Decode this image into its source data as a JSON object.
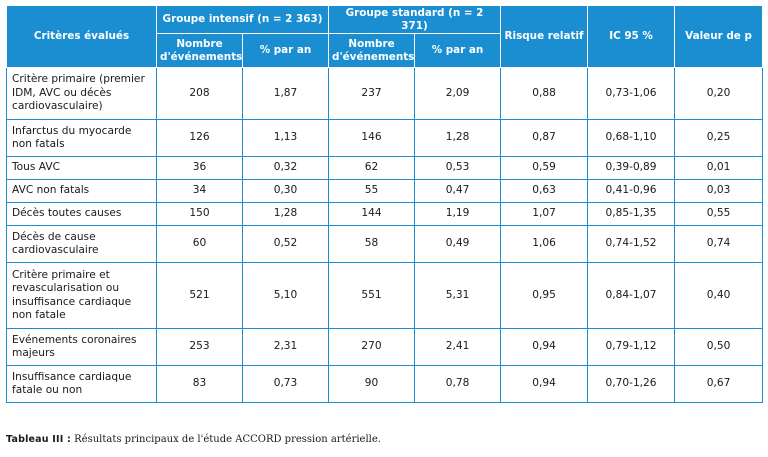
{
  "table": {
    "header": {
      "criteria": "Critères évalués",
      "group_intensive": "Groupe intensif (n = 2 363)",
      "group_standard": "Groupe standard (n = 2 371)",
      "events": "Nombre d'événements",
      "pct": "% par an",
      "rr": "Risque relatif",
      "ci": "IC 95 %",
      "p": "Valeur de p"
    },
    "rows": [
      {
        "label": "Critère primaire (premier IDM, AVC ou décès cardiovasculaire)",
        "ev_int": "208",
        "pct_int": "1,87",
        "ev_std": "237",
        "pct_std": "2,09",
        "rr": "0,88",
        "ci": "0,73-1,06",
        "p": "0,20"
      },
      {
        "label": "Infarctus du myocarde non fatals",
        "ev_int": "126",
        "pct_int": "1,13",
        "ev_std": "146",
        "pct_std": "1,28",
        "rr": "0,87",
        "ci": "0,68-1,10",
        "p": "0,25"
      },
      {
        "label": "Tous AVC",
        "ev_int": "36",
        "pct_int": "0,32",
        "ev_std": "62",
        "pct_std": "0,53",
        "rr": "0,59",
        "ci": "0,39-0,89",
        "p": "0,01"
      },
      {
        "label": "AVC non fatals",
        "ev_int": "34",
        "pct_int": "0,30",
        "ev_std": "55",
        "pct_std": "0,47",
        "rr": "0,63",
        "ci": "0,41-0,96",
        "p": "0,03"
      },
      {
        "label": "Décès toutes causes",
        "ev_int": "150",
        "pct_int": "1,28",
        "ev_std": "144",
        "pct_std": "1,19",
        "rr": "1,07",
        "ci": "0,85-1,35",
        "p": "0,55"
      },
      {
        "label": "Décès de cause cardiovasculaire",
        "ev_int": "60",
        "pct_int": "0,52",
        "ev_std": "58",
        "pct_std": "0,49",
        "rr": "1,06",
        "ci": "0,74-1,52",
        "p": "0,74"
      },
      {
        "label": "Critère primaire et revascularisation ou insuffisance cardiaque non fatale",
        "ev_int": "521",
        "pct_int": "5,10",
        "ev_std": "551",
        "pct_std": "5,31",
        "rr": "0,95",
        "ci": "0,84-1,07",
        "p": "0,40"
      },
      {
        "label": "Evénements coronaires majeurs",
        "ev_int": "253",
        "pct_int": "2,31",
        "ev_std": "270",
        "pct_std": "2,41",
        "rr": "0,94",
        "ci": "0,79-1,12",
        "p": "0,50"
      },
      {
        "label": "Insuffisance cardiaque fatale ou non",
        "ev_int": "83",
        "pct_int": "0,73",
        "ev_std": "90",
        "pct_std": "0,78",
        "rr": "0,94",
        "ci": "0,70-1,26",
        "p": "0,67"
      }
    ]
  },
  "caption": {
    "label": "Tableau III :",
    "text": " Résultats principaux de l'étude ACCORD pression artérielle."
  }
}
